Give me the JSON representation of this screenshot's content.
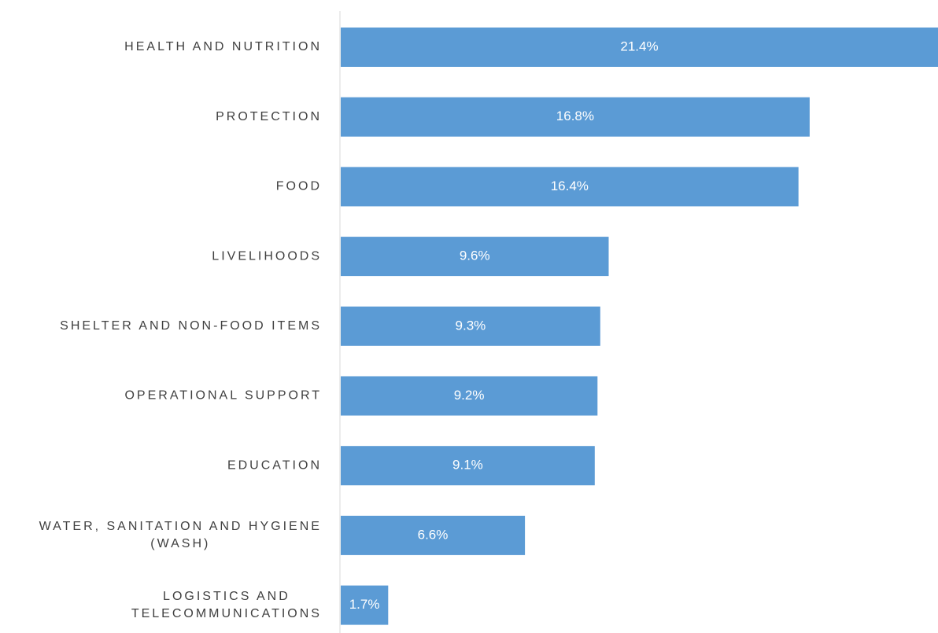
{
  "chart_data": {
    "type": "bar",
    "orientation": "horizontal",
    "categories": [
      [
        "HEALTH AND NUTRITION"
      ],
      [
        "PROTECTION"
      ],
      [
        "FOOD"
      ],
      [
        "LIVELIHOODS"
      ],
      [
        "SHELTER AND NON-FOOD ITEMS"
      ],
      [
        "OPERATIONAL SUPPORT"
      ],
      [
        "EDUCATION"
      ],
      [
        "WATER, SANITATION AND HYGIENE",
        "(WASH)"
      ],
      [
        "LOGISTICS AND",
        "TELECOMMUNICATIONS"
      ]
    ],
    "values": [
      21.4,
      16.8,
      16.4,
      9.6,
      9.3,
      9.2,
      9.1,
      6.6,
      1.7
    ],
    "value_labels": [
      "21.4%",
      "16.8%",
      "16.4%",
      "9.6%",
      "9.3%",
      "9.2%",
      "9.1%",
      "6.6%",
      "1.7%"
    ],
    "unit": "%",
    "xlim": [
      0,
      21.4
    ],
    "bar_color": "#5b9bd5",
    "axis_color": "#d9d9d9",
    "label_color": "#404040",
    "value_label_color": "#ffffff",
    "grid": false,
    "legend": "none"
  }
}
